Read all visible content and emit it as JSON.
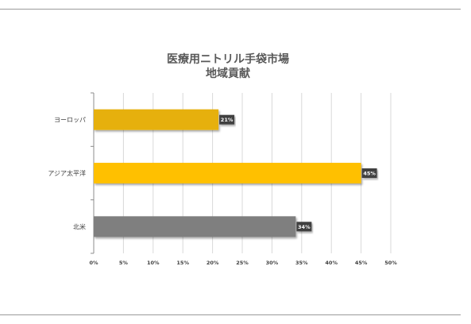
{
  "chart_data": {
    "type": "bar",
    "orientation": "horizontal",
    "title": "医療用ニトリル手袋市場",
    "subtitle": "地域貢献",
    "categories": [
      "ヨーロッパ",
      "アジア太平洋",
      "北米"
    ],
    "values": [
      21,
      45,
      34
    ],
    "value_labels": [
      "21%",
      "45%",
      "34%"
    ],
    "bar_colors": [
      "#e6b00a",
      "#ffc000",
      "#7f7f7f"
    ],
    "xlim": [
      0,
      50
    ],
    "xticks": [
      0,
      5,
      10,
      15,
      20,
      25,
      30,
      35,
      40,
      45,
      50
    ],
    "xtick_labels": [
      "0%",
      "5%",
      "10%",
      "15%",
      "20%",
      "25%",
      "30%",
      "35%",
      "40%",
      "45%",
      "50%"
    ],
    "grid": true,
    "legend": "none"
  }
}
